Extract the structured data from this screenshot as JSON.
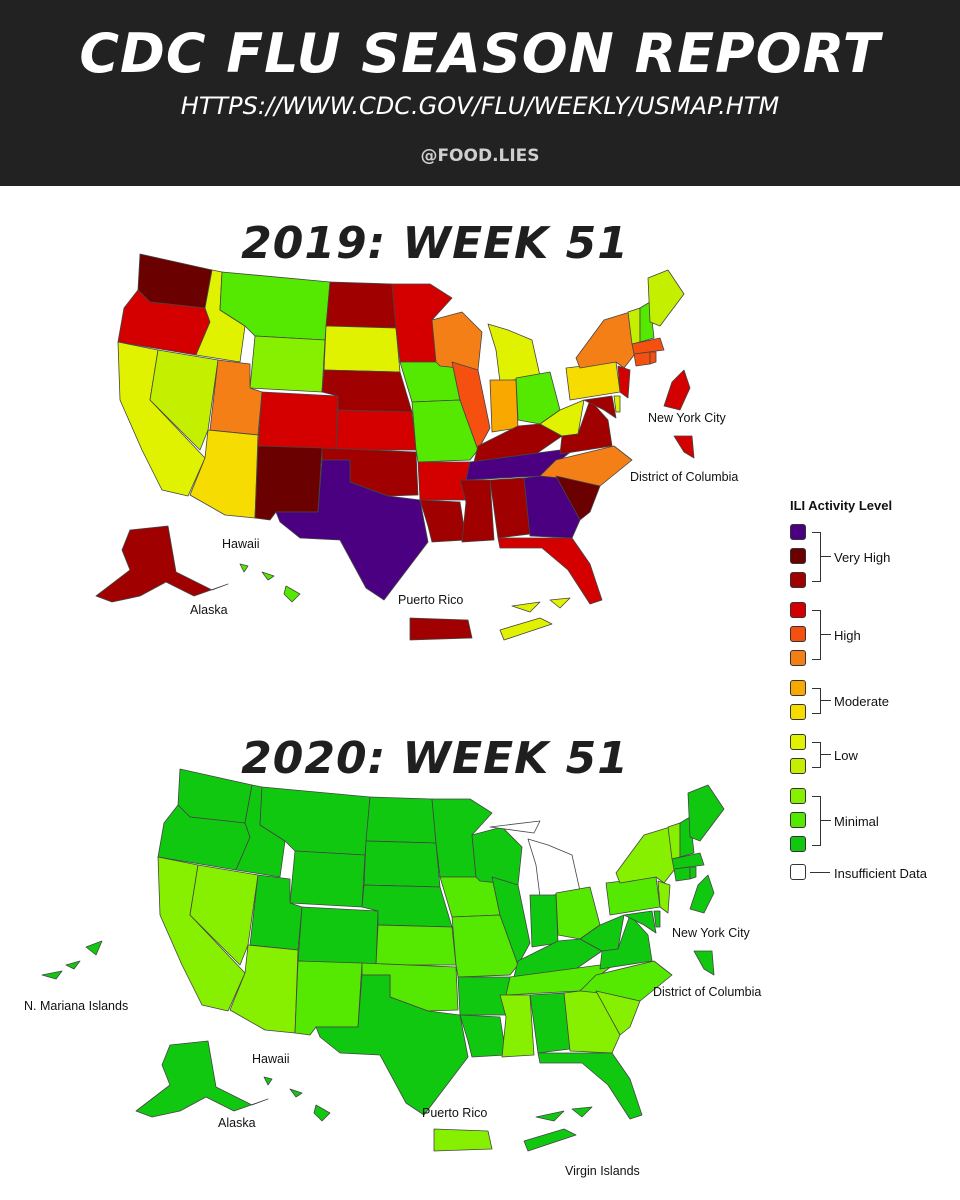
{
  "header": {
    "title": "CDC FLU SEASON REPORT",
    "url": "HTTPS://WWW.CDC.GOV/FLU/WEEKLY/USMAP.HTM",
    "handle": "@FOOD.LIES"
  },
  "map_2019": {
    "title": "2019: WEEK 51",
    "labels": {
      "new_york_city": "New York City",
      "district_of_columbia": "District of Columbia",
      "hawaii": "Hawaii",
      "alaska": "Alaska",
      "puerto_rico": "Puerto Rico"
    }
  },
  "map_2020": {
    "title": "2020: WEEK 51",
    "labels": {
      "new_york_city": "New York City",
      "district_of_columbia": "District of Columbia",
      "mariana": "N. Mariana Islands",
      "hawaii": "Hawaii",
      "alaska": "Alaska",
      "puerto_rico": "Puerto Rico",
      "virgin_islands": "Virgin Islands"
    }
  },
  "legend": {
    "title": "ILI Activity Level",
    "levels": [
      {
        "name": "Very High",
        "colors": [
          "#4b0082",
          "#6b0000",
          "#a00000"
        ]
      },
      {
        "name": "High",
        "colors": [
          "#d40000",
          "#f5500f",
          "#f57f17"
        ]
      },
      {
        "name": "Moderate",
        "colors": [
          "#f9a800",
          "#f6dc00"
        ]
      },
      {
        "name": "Low",
        "colors": [
          "#e1f200",
          "#c4f000"
        ]
      },
      {
        "name": "Minimal",
        "colors": [
          "#86f000",
          "#55e800",
          "#11c811"
        ]
      },
      {
        "name": "Insufficient Data",
        "colors": [
          "#ffffff"
        ]
      }
    ]
  }
}
